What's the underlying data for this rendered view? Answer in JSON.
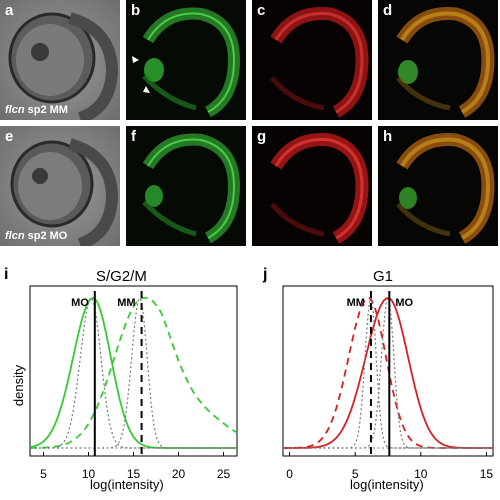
{
  "panels": {
    "a": {
      "tag": "a",
      "caption_gene": "flcn",
      "caption_rest": " sp2 MM"
    },
    "b": {
      "tag": "b"
    },
    "c": {
      "tag": "c"
    },
    "d": {
      "tag": "d"
    },
    "e": {
      "tag": "e",
      "caption_gene": "flcn",
      "caption_rest": " sp2 MO"
    },
    "f": {
      "tag": "f"
    },
    "g": {
      "tag": "g"
    },
    "h": {
      "tag": "h"
    }
  },
  "colors": {
    "green": "#33cc33",
    "red": "#d62020",
    "dark_bg": "#050a05",
    "bright_bg": "#8a8a8a"
  },
  "chart_data": [
    {
      "type": "line",
      "tag": "i",
      "title": "S/G2/M",
      "xlabel": "log(intensity)",
      "ylabel": "density",
      "xlim": [
        3.5,
        26.5
      ],
      "x_ticks": [
        5,
        10,
        15,
        20,
        25
      ],
      "vlines": [
        {
          "label": "MO",
          "x": 10.7
        },
        {
          "label": "MM",
          "x": 15.9
        }
      ],
      "series": [
        {
          "style": "solid",
          "color": "#33cc33",
          "label": "MO",
          "peak": 10.5
        },
        {
          "style": "dashed",
          "color": "#33cc33",
          "label": "MM",
          "peak": 16.1
        },
        {
          "style": "dotted",
          "color": "#777777",
          "peak": 10.3
        },
        {
          "style": "dotted",
          "color": "#777777",
          "peak": 15.7
        }
      ]
    },
    {
      "type": "line",
      "tag": "j",
      "title": "G1",
      "xlabel": "log(intensity)",
      "ylabel": "",
      "xlim": [
        -0.5,
        15.5
      ],
      "x_ticks": [
        0,
        5,
        10,
        15
      ],
      "vlines": [
        {
          "label": "MM",
          "x": 6.2
        },
        {
          "label": "MO",
          "x": 7.6
        }
      ],
      "series": [
        {
          "style": "solid",
          "color": "#d62020",
          "label": "MO",
          "peak": 7.5
        },
        {
          "style": "dashed",
          "color": "#d62020",
          "label": "MM",
          "peak": 6.0
        },
        {
          "style": "dotted",
          "color": "#777777",
          "peak": 6.2
        },
        {
          "style": "dotted",
          "color": "#777777",
          "peak": 7.5
        }
      ]
    }
  ]
}
